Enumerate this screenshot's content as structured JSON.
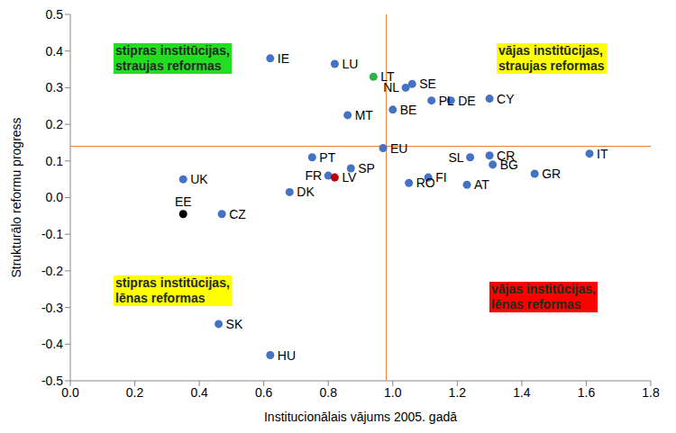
{
  "chart_data": {
    "type": "scatter",
    "x_label": "Institucionālais vājums 2005. gadā",
    "y_label": "Strukturālo reformu progress",
    "xlim": [
      0,
      1.8
    ],
    "xticks": [
      {
        "value": 0,
        "label": "0.0"
      },
      0.2,
      0.4,
      0.6,
      0.8,
      {
        "value": 1,
        "label": "1.0"
      },
      1.2,
      1.4,
      1.6,
      1.8
    ],
    "ylim": [
      -0.5,
      0.5
    ],
    "yticks": [
      -0.5,
      -0.4,
      -0.3,
      -0.2,
      -0.1,
      {
        "value": 0,
        "label": "0.0"
      },
      0.1,
      0.2,
      0.3,
      0.4,
      0.5
    ],
    "grid": false,
    "reference_lines": {
      "x": 0.98,
      "y": 0.14,
      "color": "#ed7d31"
    },
    "points": [
      {
        "name": "IE",
        "x": 0.62,
        "y": 0.38
      },
      {
        "name": "LU",
        "x": 0.82,
        "y": 0.365
      },
      {
        "name": "LT",
        "x": 0.94,
        "y": 0.33
      },
      {
        "name": "SE",
        "x": 1.06,
        "y": 0.31
      },
      {
        "name": "NL",
        "x": 1.04,
        "y": 0.3
      },
      {
        "name": "DE",
        "x": 1.18,
        "y": 0.265
      },
      {
        "name": "PL",
        "x": 1.12,
        "y": 0.265
      },
      {
        "name": "CY",
        "x": 1.3,
        "y": 0.27
      },
      {
        "name": "MT",
        "x": 0.86,
        "y": 0.225
      },
      {
        "name": "BE",
        "x": 1.0,
        "y": 0.24
      },
      {
        "name": "EU",
        "x": 0.97,
        "y": 0.135
      },
      {
        "name": "PT",
        "x": 0.75,
        "y": 0.11
      },
      {
        "name": "SL",
        "x": 1.24,
        "y": 0.11
      },
      {
        "name": "CR",
        "x": 1.3,
        "y": 0.115
      },
      {
        "name": "BG",
        "x": 1.31,
        "y": 0.09
      },
      {
        "name": "IT",
        "x": 1.61,
        "y": 0.12
      },
      {
        "name": "UK",
        "x": 0.35,
        "y": 0.05
      },
      {
        "name": "FR",
        "x": 0.8,
        "y": 0.06
      },
      {
        "name": "LV",
        "x": 0.82,
        "y": 0.055
      },
      {
        "name": "SP",
        "x": 0.87,
        "y": 0.08
      },
      {
        "name": "FI",
        "x": 1.11,
        "y": 0.055
      },
      {
        "name": "RO",
        "x": 1.05,
        "y": 0.04
      },
      {
        "name": "AT",
        "x": 1.23,
        "y": 0.035
      },
      {
        "name": "GR",
        "x": 1.44,
        "y": 0.065
      },
      {
        "name": "DK",
        "x": 0.68,
        "y": 0.015
      },
      {
        "name": "CZ",
        "x": 0.47,
        "y": -0.045
      },
      {
        "name": "EE",
        "x": 0.35,
        "y": -0.045
      },
      {
        "name": "SK",
        "x": 0.46,
        "y": -0.345
      },
      {
        "name": "HU",
        "x": 0.62,
        "y": -0.43
      }
    ],
    "colors": [
      "#4472c4",
      "#4472c4",
      "#2db34a",
      "#4472c4",
      "#4472c4",
      "#4472c4",
      "#4472c4",
      "#4472c4",
      "#4472c4",
      "#4472c4",
      "#4472c4",
      "#4472c4",
      "#4472c4",
      "#4472c4",
      "#4472c4",
      "#4472c4",
      "#4472c4",
      "#4472c4",
      "#c00000",
      "#4472c4",
      "#4472c4",
      "#4472c4",
      "#4472c4",
      "#4472c4",
      "#4472c4",
      "#4472c4",
      "#000000",
      "#4472c4",
      "#4472c4"
    ],
    "annotations": [
      {
        "text": [
          "stipras institūcijas,",
          "straujas reformas"
        ],
        "color": "#22dd22"
      },
      {
        "text": [
          "vājas institūcijas,",
          "straujas reformas"
        ],
        "color": "#ffff00"
      },
      {
        "text": [
          "stipras institūcijas,",
          "lēnas reformas"
        ],
        "color": "#ffff00"
      },
      {
        "text": [
          "vājas institūcijas,",
          "lēnas reformas"
        ],
        "color": "#ff0000"
      }
    ]
  }
}
